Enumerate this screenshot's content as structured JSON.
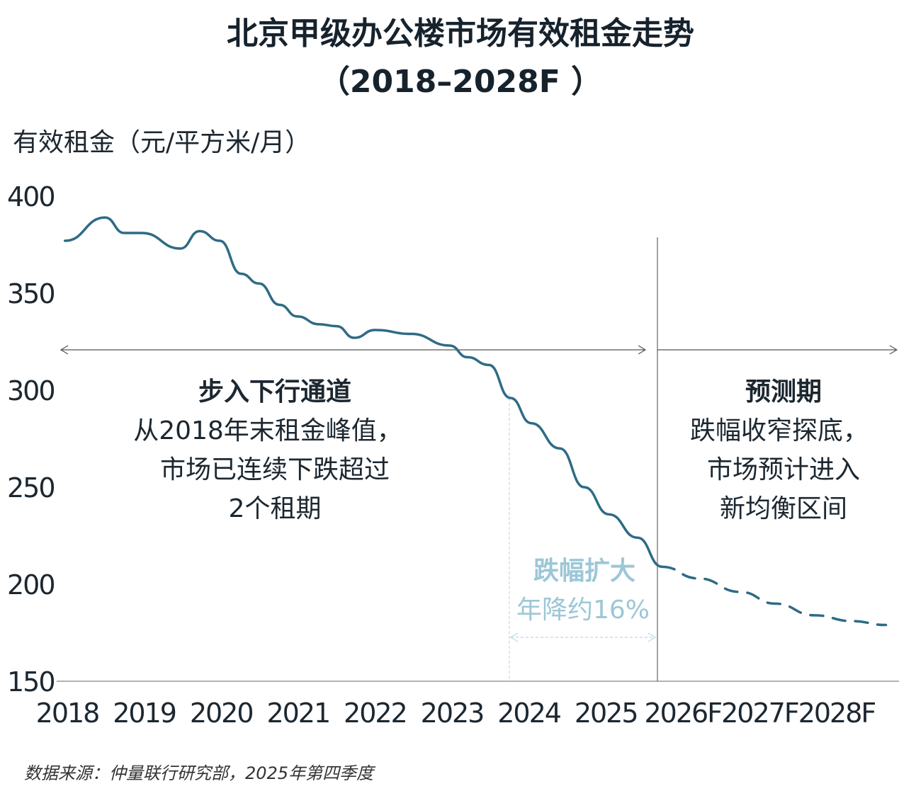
{
  "chart_data": {
    "type": "line",
    "title": "北京甲级办公楼市场有效租金走势",
    "subtitle": "（2018–2028F ）",
    "ylabel": "有效租金（元/平方米/月）",
    "xlabel": "",
    "xlim": [
      2018,
      2028
    ],
    "ylim": [
      150,
      400
    ],
    "yticks": [
      "400",
      "350",
      "300",
      "250",
      "200",
      "150"
    ],
    "xticks": [
      "2018",
      "2019",
      "2020",
      "2021",
      "2022",
      "2023",
      "2024",
      "2025",
      "2026F",
      "2027F",
      "2028F"
    ],
    "grid": false,
    "color": "#2e6b84",
    "series": [
      {
        "style": "solid",
        "points": [
          [
            2017.97,
            377
          ],
          [
            2018.49,
            389
          ],
          [
            2018.74,
            381
          ],
          [
            2018.97,
            381
          ],
          [
            2019.47,
            373
          ],
          [
            2019.72,
            382
          ],
          [
            2019.98,
            377
          ],
          [
            2020.26,
            360
          ],
          [
            2020.49,
            355
          ],
          [
            2020.76,
            344
          ],
          [
            2020.99,
            338
          ],
          [
            2021.27,
            334
          ],
          [
            2021.5,
            333
          ],
          [
            2021.73,
            327
          ],
          [
            2022.0,
            331
          ],
          [
            2022.47,
            329
          ],
          [
            2022.97,
            323
          ],
          [
            2023.2,
            317
          ],
          [
            2023.48,
            313
          ],
          [
            2023.76,
            296
          ],
          [
            2024.03,
            283
          ],
          [
            2024.4,
            270
          ],
          [
            2024.72,
            250
          ],
          [
            2025.04,
            236
          ],
          [
            2025.41,
            224
          ],
          [
            2025.73,
            209
          ]
        ]
      },
      {
        "style": "dashed",
        "points": [
          [
            2025.73,
            209
          ],
          [
            2026.2,
            203
          ],
          [
            2026.75,
            196
          ],
          [
            2027.2,
            190
          ],
          [
            2027.71,
            184
          ],
          [
            2028.2,
            181
          ],
          [
            2028.64,
            179
          ]
        ]
      }
    ],
    "annotations": {
      "downtrend": {
        "heading": "步入下行通道",
        "lines": [
          "从2018年末租金峰值，",
          "市场已连续下跌超过",
          "2个租期"
        ]
      },
      "forecast": {
        "heading": "预测期",
        "lines": [
          "跌幅收窄探底，",
          "市场预计进入",
          "新均衡区间"
        ]
      },
      "widening": {
        "heading": "跌幅扩大",
        "text": "年降约16%",
        "color": "#9cc7d7"
      }
    },
    "source": "数据来源：仲量联行研究部，2025年第四季度"
  }
}
